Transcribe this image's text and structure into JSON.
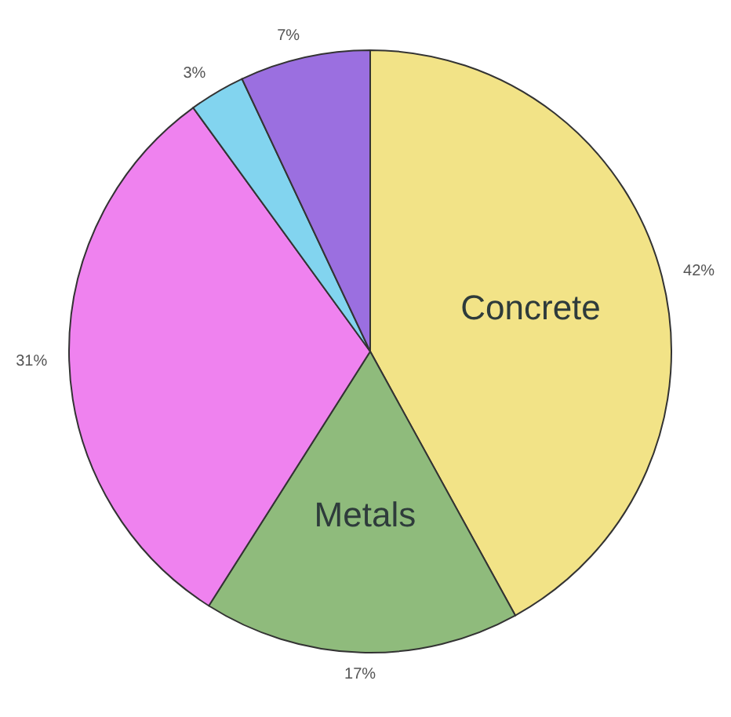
{
  "chart_data": {
    "type": "pie",
    "categories": [
      "Concrete",
      "Metals",
      null,
      null,
      null
    ],
    "values": [
      42,
      17,
      31,
      3,
      7
    ],
    "colors": [
      "#f2e387",
      "#8fbb7c",
      "#ef82ef",
      "#82d4ef",
      "#9b6fe0"
    ],
    "value_labels": [
      "42%",
      "17%",
      "31%",
      "3%",
      "7%"
    ]
  }
}
